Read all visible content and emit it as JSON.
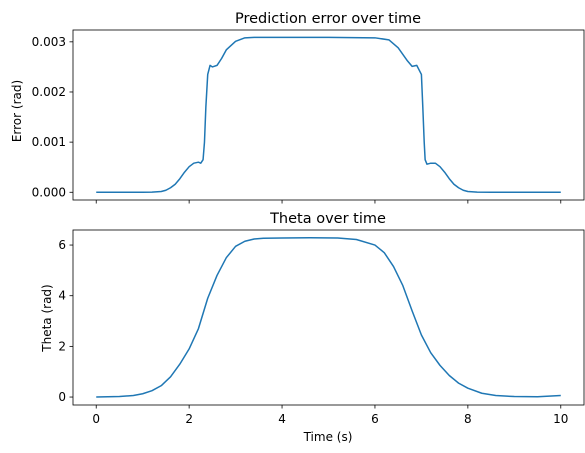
{
  "chart_data": [
    {
      "type": "line",
      "title": "Prediction error over time",
      "xlabel": "",
      "ylabel": "Error (rad)",
      "xlim": [
        -0.5,
        10.5
      ],
      "ylim": [
        -0.000154,
        0.003236
      ],
      "xticks": [
        0,
        2,
        4,
        6,
        8,
        10
      ],
      "show_xtick_labels": false,
      "yticks": [
        0.0,
        0.001,
        0.002,
        0.003
      ],
      "ytick_labels": [
        "0.000",
        "0.001",
        "0.002",
        "0.003"
      ],
      "color": "#1f77b4",
      "grid": false,
      "series": [
        {
          "x": [
            0,
            0.5,
            1.0,
            1.2,
            1.4,
            1.5,
            1.6,
            1.7,
            1.8,
            1.9,
            2.0,
            2.1,
            2.2,
            2.25,
            2.3,
            2.33,
            2.36,
            2.4,
            2.45,
            2.5,
            2.6,
            2.7,
            2.8,
            3.0,
            3.2,
            3.4,
            3.6,
            4.0,
            5.0,
            6.0,
            6.3,
            6.5,
            6.7,
            6.8,
            6.9,
            7.0,
            7.03,
            7.06,
            7.08,
            7.12,
            7.2,
            7.3,
            7.4,
            7.5,
            7.6,
            7.7,
            7.8,
            7.9,
            8.0,
            8.2,
            8.5,
            9.0,
            10.0
          ],
          "y": [
            0.0,
            0.0,
            0.0,
            3e-06,
            1.5e-05,
            4e-05,
            9e-05,
            0.00016,
            0.00027,
            0.0004,
            0.00051,
            0.00058,
            0.0006,
            0.00058,
            0.00065,
            0.001,
            0.0017,
            0.00235,
            0.00253,
            0.0025,
            0.00253,
            0.00267,
            0.00284,
            0.00301,
            0.00308,
            0.00309,
            0.00309,
            0.00309,
            0.00309,
            0.00308,
            0.00304,
            0.00288,
            0.00262,
            0.00251,
            0.00253,
            0.00235,
            0.0017,
            0.001,
            0.00065,
            0.00056,
            0.00058,
            0.00058,
            0.00051,
            0.0004,
            0.00027,
            0.00016,
            9e-05,
            4e-05,
            1.5e-05,
            3e-06,
            0.0,
            0.0,
            0.0
          ]
        }
      ]
    },
    {
      "type": "line",
      "title": "Theta over time",
      "xlabel": "Time (s)",
      "ylabel": "Theta (rad)",
      "xlim": [
        -0.5,
        10.5
      ],
      "ylim": [
        -0.314,
        6.594
      ],
      "xticks": [
        0,
        2,
        4,
        6,
        8,
        10
      ],
      "xtick_labels": [
        "0",
        "2",
        "4",
        "6",
        "8",
        "10"
      ],
      "show_xtick_labels": true,
      "yticks": [
        0,
        2,
        4,
        6
      ],
      "ytick_labels": [
        "0",
        "2",
        "4",
        "6"
      ],
      "color": "#1f77b4",
      "grid": false,
      "series": [
        {
          "x": [
            0,
            0.5,
            0.8,
            1.0,
            1.2,
            1.4,
            1.6,
            1.8,
            2.0,
            2.2,
            2.4,
            2.6,
            2.8,
            3.0,
            3.2,
            3.4,
            3.6,
            4.0,
            4.6,
            5.2,
            5.6,
            6.0,
            6.2,
            6.4,
            6.6,
            6.8,
            7.0,
            7.2,
            7.4,
            7.6,
            7.8,
            8.0,
            8.3,
            8.6,
            9.0,
            9.5,
            10.0
          ],
          "y": [
            0.0,
            0.02,
            0.06,
            0.13,
            0.25,
            0.45,
            0.8,
            1.3,
            1.9,
            2.7,
            3.9,
            4.8,
            5.5,
            5.95,
            6.15,
            6.24,
            6.27,
            6.28,
            6.29,
            6.28,
            6.22,
            6.0,
            5.7,
            5.15,
            4.4,
            3.4,
            2.45,
            1.75,
            1.25,
            0.85,
            0.55,
            0.35,
            0.15,
            0.06,
            0.02,
            0.01,
            0.06
          ]
        }
      ]
    }
  ]
}
